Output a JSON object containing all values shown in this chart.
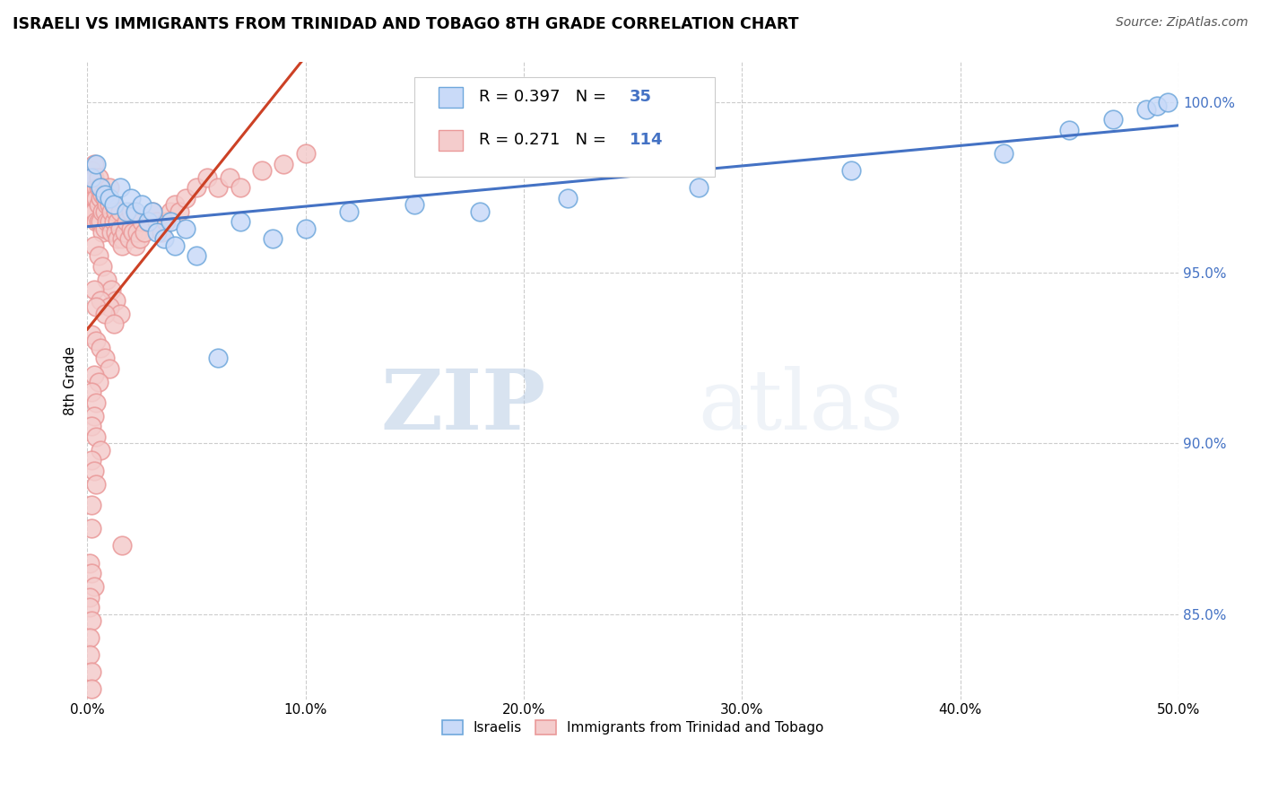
{
  "title": "ISRAELI VS IMMIGRANTS FROM TRINIDAD AND TOBAGO 8TH GRADE CORRELATION CHART",
  "source_text": "Source: ZipAtlas.com",
  "ylabel": "8th Grade",
  "xlim": [
    0.0,
    0.5
  ],
  "ylim": [
    0.825,
    1.012
  ],
  "xtick_labels": [
    "0.0%",
    "10.0%",
    "20.0%",
    "30.0%",
    "40.0%",
    "50.0%"
  ],
  "xtick_values": [
    0.0,
    0.1,
    0.2,
    0.3,
    0.4,
    0.5
  ],
  "ytick_labels": [
    "85.0%",
    "90.0%",
    "95.0%",
    "100.0%"
  ],
  "ytick_values": [
    0.85,
    0.9,
    0.95,
    1.0
  ],
  "blue_fill": "#c9daf8",
  "blue_edge": "#6fa8dc",
  "blue_line": "#4472c4",
  "pink_fill": "#f4cccc",
  "pink_edge": "#ea9999",
  "pink_line": "#cc4125",
  "blue_label": "Israelis",
  "pink_label": "Immigrants from Trinidad and Tobago",
  "legend_r_blue": "R = 0.397",
  "legend_n_blue": "N =",
  "legend_n_blue_val": "35",
  "legend_r_pink": "R = 0.271",
  "legend_n_pink": "N = 114",
  "legend_n_pink_val": "114",
  "watermark_zip": "ZIP",
  "watermark_atlas": "atlas",
  "blue_x": [
    0.002,
    0.004,
    0.006,
    0.008,
    0.01,
    0.012,
    0.015,
    0.018,
    0.02,
    0.022,
    0.025,
    0.028,
    0.03,
    0.032,
    0.035,
    0.038,
    0.04,
    0.045,
    0.05,
    0.06,
    0.07,
    0.085,
    0.1,
    0.12,
    0.15,
    0.18,
    0.22,
    0.28,
    0.35,
    0.42,
    0.45,
    0.47,
    0.485,
    0.49,
    0.495
  ],
  "blue_y": [
    0.978,
    0.982,
    0.975,
    0.973,
    0.972,
    0.97,
    0.975,
    0.968,
    0.972,
    0.968,
    0.97,
    0.965,
    0.968,
    0.962,
    0.96,
    0.965,
    0.958,
    0.963,
    0.955,
    0.925,
    0.965,
    0.96,
    0.963,
    0.968,
    0.97,
    0.968,
    0.972,
    0.975,
    0.98,
    0.985,
    0.992,
    0.995,
    0.998,
    0.999,
    1.0
  ],
  "pink_x": [
    0.001,
    0.001,
    0.001,
    0.002,
    0.002,
    0.002,
    0.002,
    0.003,
    0.003,
    0.003,
    0.003,
    0.004,
    0.004,
    0.004,
    0.005,
    0.005,
    0.005,
    0.005,
    0.006,
    0.006,
    0.006,
    0.007,
    0.007,
    0.007,
    0.008,
    0.008,
    0.008,
    0.009,
    0.009,
    0.01,
    0.01,
    0.01,
    0.011,
    0.011,
    0.012,
    0.012,
    0.013,
    0.013,
    0.014,
    0.014,
    0.015,
    0.015,
    0.016,
    0.016,
    0.017,
    0.018,
    0.019,
    0.02,
    0.02,
    0.021,
    0.022,
    0.023,
    0.024,
    0.025,
    0.026,
    0.028,
    0.03,
    0.032,
    0.034,
    0.036,
    0.038,
    0.04,
    0.042,
    0.045,
    0.05,
    0.055,
    0.06,
    0.065,
    0.07,
    0.08,
    0.09,
    0.1,
    0.003,
    0.005,
    0.007,
    0.009,
    0.011,
    0.013,
    0.003,
    0.006,
    0.01,
    0.015,
    0.004,
    0.008,
    0.012,
    0.002,
    0.004,
    0.006,
    0.008,
    0.01,
    0.003,
    0.005,
    0.002,
    0.004,
    0.003,
    0.002,
    0.004,
    0.006,
    0.002,
    0.003,
    0.004,
    0.002,
    0.002,
    0.016,
    0.001,
    0.002,
    0.003,
    0.001,
    0.001,
    0.002,
    0.001,
    0.001,
    0.002,
    0.002
  ],
  "pink_y": [
    0.978,
    0.975,
    0.972,
    0.98,
    0.977,
    0.973,
    0.968,
    0.982,
    0.978,
    0.972,
    0.968,
    0.975,
    0.972,
    0.965,
    0.978,
    0.975,
    0.97,
    0.965,
    0.975,
    0.972,
    0.965,
    0.973,
    0.968,
    0.962,
    0.972,
    0.968,
    0.963,
    0.97,
    0.965,
    0.975,
    0.97,
    0.965,
    0.968,
    0.962,
    0.97,
    0.965,
    0.968,
    0.962,
    0.965,
    0.96,
    0.968,
    0.963,
    0.96,
    0.958,
    0.962,
    0.965,
    0.96,
    0.968,
    0.963,
    0.962,
    0.958,
    0.962,
    0.96,
    0.965,
    0.962,
    0.965,
    0.968,
    0.965,
    0.962,
    0.965,
    0.968,
    0.97,
    0.968,
    0.972,
    0.975,
    0.978,
    0.975,
    0.978,
    0.975,
    0.98,
    0.982,
    0.985,
    0.958,
    0.955,
    0.952,
    0.948,
    0.945,
    0.942,
    0.945,
    0.942,
    0.94,
    0.938,
    0.94,
    0.938,
    0.935,
    0.932,
    0.93,
    0.928,
    0.925,
    0.922,
    0.92,
    0.918,
    0.915,
    0.912,
    0.908,
    0.905,
    0.902,
    0.898,
    0.895,
    0.892,
    0.888,
    0.882,
    0.875,
    0.87,
    0.865,
    0.862,
    0.858,
    0.855,
    0.852,
    0.848,
    0.843,
    0.838,
    0.833,
    0.828
  ]
}
